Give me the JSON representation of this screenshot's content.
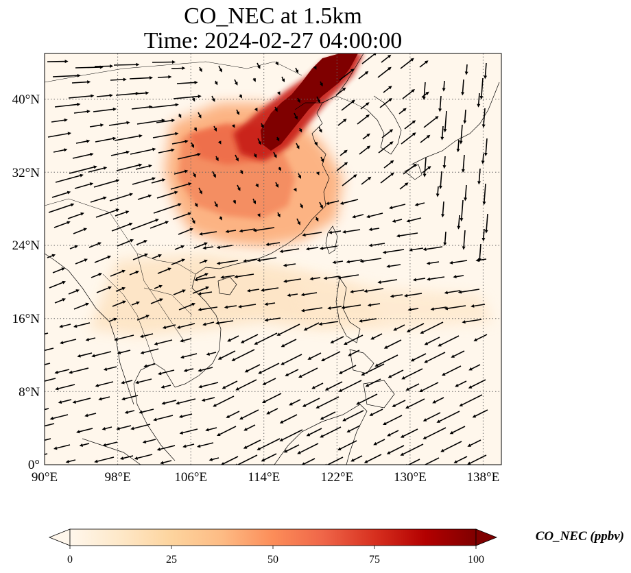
{
  "title_line1": "CO_NEC at 1.5km",
  "title_line2": "Time: 2024-02-27 04:00:00",
  "map": {
    "lon_ticks": [
      "90°E",
      "98°E",
      "106°E",
      "114°E",
      "122°E",
      "130°E",
      "138°E"
    ],
    "lat_ticks": [
      "0°",
      "8°N",
      "16°N",
      "24°N",
      "32°N",
      "40°N"
    ],
    "lon_values": [
      90,
      98,
      106,
      114,
      122,
      130,
      138
    ],
    "lat_values": [
      0,
      8,
      16,
      24,
      32,
      40
    ],
    "lon_range": [
      90,
      140
    ],
    "lat_range": [
      0,
      45
    ],
    "gridlines": "dotted",
    "vector_field": "wind arrows at 1.5km"
  },
  "colorbar": {
    "label": "CO_NEC (ppbv)",
    "ticks": [
      "0",
      "25",
      "50",
      "75",
      "100"
    ],
    "range": [
      0,
      100
    ],
    "colormap": "OrRd",
    "colors": [
      "#fff7ec",
      "#fee8c8",
      "#fdd49e",
      "#fdbb84",
      "#fc8d59",
      "#ef6548",
      "#d7301f",
      "#b30000",
      "#7f0000"
    ],
    "extend": "both"
  },
  "colors": {
    "background": "#fff7ec",
    "high_co": "#7f0000",
    "medium_co": "#ef6548",
    "coastline": "#000000",
    "grid": "#666666"
  }
}
